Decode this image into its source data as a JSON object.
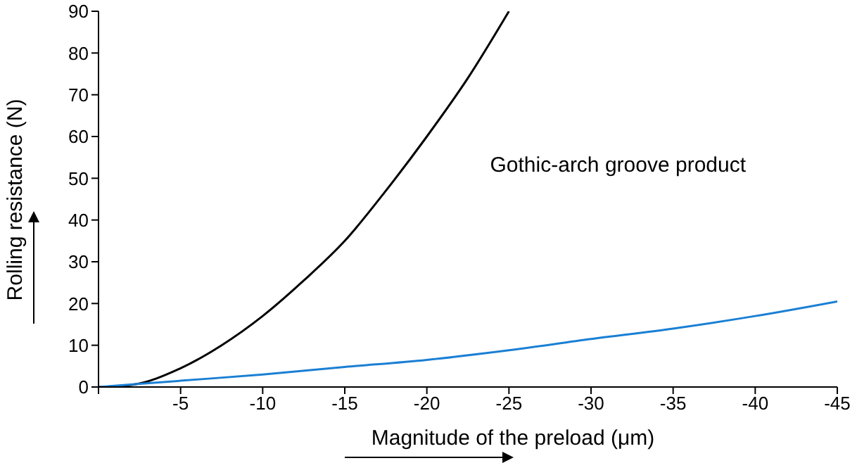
{
  "chart_data": {
    "type": "line",
    "xlabel": "Magnitude of the preload (μm)",
    "ylabel": "Rolling resistance (N)",
    "xlim": [
      0,
      -45
    ],
    "xticks": [
      {
        "value": 0,
        "label": null
      },
      -5,
      -10,
      -15,
      -20,
      -25,
      -30,
      -35,
      -40,
      -45
    ],
    "ylim": [
      0,
      90
    ],
    "yticks": [
      0,
      10,
      20,
      30,
      40,
      50,
      60,
      70,
      80,
      90
    ],
    "marker": "none",
    "line_style": "solid",
    "series": [
      {
        "name": "Gothic-arch groove product",
        "color": "#000000",
        "x": [
          0,
          -2,
          -5,
          -7.5,
          -10,
          -12.5,
          -15,
          -17.5,
          -20,
          -22.5,
          -25
        ],
        "values": [
          0,
          0.5,
          4.5,
          10,
          17,
          25.5,
          35,
          47,
          60,
          74,
          90
        ]
      },
      {
        "color": "#1a7fd4",
        "x": [
          0,
          -5,
          -10,
          -15,
          -20,
          -25,
          -30,
          -35,
          -40,
          -45
        ],
        "values": [
          0,
          1.5,
          3,
          4.8,
          6.5,
          8.8,
          11.5,
          14,
          17,
          20.5
        ]
      }
    ]
  }
}
